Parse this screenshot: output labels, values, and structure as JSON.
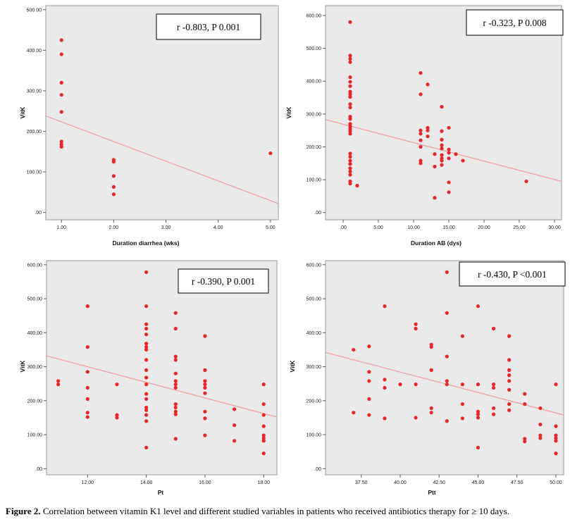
{
  "colors": {
    "marker": "#e8262a",
    "fitline": "#f0a0a0",
    "plotbg": "#eaeaea",
    "axis": "#000000"
  },
  "chart_data": [
    {
      "type": "scatter",
      "xlabel": "Duration diarrhea (wks)",
      "ylabel": "VitK",
      "annotation": "r -0.803, P 0.001",
      "xlim": [
        0.7,
        5.15
      ],
      "ylim": [
        -18,
        510
      ],
      "xticks": [
        1,
        2,
        3,
        4,
        5
      ],
      "xtick_labels": [
        "1.00",
        "2.00",
        "3.00",
        "4.00",
        "5.00"
      ],
      "yticks": [
        0,
        100,
        200,
        300,
        400,
        500
      ],
      "ytick_labels": [
        ".00",
        "100.00",
        "200.00",
        "300.00",
        "400.00",
        "500.00"
      ],
      "fit_line": [
        [
          0.7,
          238
        ],
        [
          5.15,
          22
        ]
      ],
      "points": [
        [
          1,
          425
        ],
        [
          1,
          390
        ],
        [
          1,
          320
        ],
        [
          1,
          290
        ],
        [
          1,
          248
        ],
        [
          1,
          175
        ],
        [
          1,
          168
        ],
        [
          1,
          162
        ],
        [
          2,
          130
        ],
        [
          2,
          125
        ],
        [
          2,
          90
        ],
        [
          2,
          63
        ],
        [
          2,
          45
        ],
        [
          5,
          146
        ]
      ]
    },
    {
      "type": "scatter",
      "xlabel": "Duration AB (dys)",
      "ylabel": "VitK",
      "annotation": "r -0.323, P 0.008",
      "xlim": [
        -2.5,
        31
      ],
      "ylim": [
        -22,
        630
      ],
      "xticks": [
        0,
        5,
        10,
        15,
        20,
        25,
        30
      ],
      "xtick_labels": [
        ".00",
        "5.00",
        "10.00",
        "15.00",
        "20.00",
        "25.00",
        "30.00"
      ],
      "yticks": [
        0,
        100,
        200,
        300,
        400,
        500,
        600
      ],
      "ytick_labels": [
        ".00",
        "100.00",
        "200.00",
        "300.00",
        "400.00",
        "500.00",
        "600.00"
      ],
      "fit_line": [
        [
          -2.5,
          283
        ],
        [
          31,
          95
        ]
      ],
      "points": [
        [
          1,
          580
        ],
        [
          1,
          478
        ],
        [
          1,
          468
        ],
        [
          1,
          458
        ],
        [
          1,
          412
        ],
        [
          1,
          398
        ],
        [
          1,
          385
        ],
        [
          1,
          368
        ],
        [
          1,
          360
        ],
        [
          1,
          352
        ],
        [
          1,
          330
        ],
        [
          1,
          320
        ],
        [
          1,
          292
        ],
        [
          1,
          285
        ],
        [
          1,
          270
        ],
        [
          1,
          262
        ],
        [
          1,
          255
        ],
        [
          1,
          248
        ],
        [
          1,
          240
        ],
        [
          1,
          180
        ],
        [
          1,
          170
        ],
        [
          1,
          158
        ],
        [
          1,
          148
        ],
        [
          1,
          135
        ],
        [
          1,
          125
        ],
        [
          1,
          115
        ],
        [
          1,
          95
        ],
        [
          1,
          88
        ],
        [
          2,
          82
        ],
        [
          11,
          425
        ],
        [
          11,
          360
        ],
        [
          11,
          250
        ],
        [
          11,
          240
        ],
        [
          11,
          220
        ],
        [
          11,
          200
        ],
        [
          11,
          158
        ],
        [
          11,
          150
        ],
        [
          12,
          390
        ],
        [
          12,
          258
        ],
        [
          12,
          250
        ],
        [
          12,
          232
        ],
        [
          13,
          178
        ],
        [
          13,
          140
        ],
        [
          13,
          45
        ],
        [
          14,
          322
        ],
        [
          14,
          248
        ],
        [
          14,
          222
        ],
        [
          14,
          205
        ],
        [
          14,
          195
        ],
        [
          14,
          175
        ],
        [
          14,
          165
        ],
        [
          14,
          158
        ],
        [
          14,
          145
        ],
        [
          15,
          258
        ],
        [
          15,
          192
        ],
        [
          15,
          182
        ],
        [
          15,
          165
        ],
        [
          15,
          92
        ],
        [
          15,
          62
        ],
        [
          16,
          178
        ],
        [
          17,
          158
        ],
        [
          26,
          95
        ]
      ]
    },
    {
      "type": "scatter",
      "xlabel": "Pt",
      "ylabel": "VitK",
      "annotation": "r -0.390, P 0.001",
      "xlim": [
        10.6,
        18.45
      ],
      "ylim": [
        -18,
        612
      ],
      "xticks": [
        12,
        14,
        16,
        18
      ],
      "xtick_labels": [
        "12.00",
        "14.00",
        "16.00",
        "18.00"
      ],
      "yticks": [
        0,
        100,
        200,
        300,
        400,
        500,
        600
      ],
      "ytick_labels": [
        ".00",
        "100.00",
        "200.00",
        "300.00",
        "400.00",
        "500.00",
        "600.00"
      ],
      "fit_line": [
        [
          10.6,
          332
        ],
        [
          18.45,
          152
        ]
      ],
      "points": [
        [
          11,
          258
        ],
        [
          11,
          248
        ],
        [
          12,
          478
        ],
        [
          12,
          358
        ],
        [
          12,
          285
        ],
        [
          12,
          238
        ],
        [
          12,
          205
        ],
        [
          12,
          165
        ],
        [
          12,
          152
        ],
        [
          13,
          248
        ],
        [
          13,
          158
        ],
        [
          13,
          150
        ],
        [
          14,
          578
        ],
        [
          14,
          478
        ],
        [
          14,
          425
        ],
        [
          14,
          412
        ],
        [
          14,
          395
        ],
        [
          14,
          368
        ],
        [
          14,
          358
        ],
        [
          14,
          350
        ],
        [
          14,
          320
        ],
        [
          14,
          290
        ],
        [
          14,
          268
        ],
        [
          14,
          248
        ],
        [
          14,
          220
        ],
        [
          14,
          205
        ],
        [
          14,
          180
        ],
        [
          14,
          172
        ],
        [
          14,
          158
        ],
        [
          14,
          140
        ],
        [
          14,
          62
        ],
        [
          15,
          458
        ],
        [
          15,
          412
        ],
        [
          15,
          330
        ],
        [
          15,
          320
        ],
        [
          15,
          280
        ],
        [
          15,
          258
        ],
        [
          15,
          248
        ],
        [
          15,
          238
        ],
        [
          15,
          190
        ],
        [
          15,
          180
        ],
        [
          15,
          168
        ],
        [
          15,
          160
        ],
        [
          15,
          88
        ],
        [
          16,
          390
        ],
        [
          16,
          290
        ],
        [
          16,
          258
        ],
        [
          16,
          248
        ],
        [
          16,
          238
        ],
        [
          16,
          222
        ],
        [
          16,
          168
        ],
        [
          16,
          148
        ],
        [
          16,
          98
        ],
        [
          17,
          175
        ],
        [
          17,
          128
        ],
        [
          17,
          82
        ],
        [
          18,
          248
        ],
        [
          18,
          190
        ],
        [
          18,
          158
        ],
        [
          18,
          125
        ],
        [
          18,
          98
        ],
        [
          18,
          90
        ],
        [
          18,
          82
        ],
        [
          18,
          45
        ]
      ]
    },
    {
      "type": "scatter",
      "xlabel": "Ptt",
      "ylabel": "VitK",
      "annotation": "r -0.430, P <0.001",
      "xlim": [
        35.2,
        50.5
      ],
      "ylim": [
        -18,
        612
      ],
      "xticks": [
        37.5,
        40,
        42.5,
        45,
        47.5,
        50
      ],
      "xtick_labels": [
        "37.50",
        "40.00",
        "42.50",
        "45.00",
        "47.50",
        "50.00"
      ],
      "yticks": [
        0,
        100,
        200,
        300,
        400,
        500,
        600
      ],
      "ytick_labels": [
        ".00",
        "100.00",
        "200.00",
        "300.00",
        "400.00",
        "500.00",
        "600.00"
      ],
      "fit_line": [
        [
          35.2,
          342
        ],
        [
          50.5,
          158
        ]
      ],
      "points": [
        [
          37,
          350
        ],
        [
          37,
          165
        ],
        [
          38,
          360
        ],
        [
          38,
          285
        ],
        [
          38,
          258
        ],
        [
          38,
          205
        ],
        [
          38,
          158
        ],
        [
          39,
          478
        ],
        [
          39,
          262
        ],
        [
          39,
          238
        ],
        [
          39,
          148
        ],
        [
          40,
          248
        ],
        [
          41,
          425
        ],
        [
          41,
          412
        ],
        [
          41,
          248
        ],
        [
          41,
          150
        ],
        [
          42,
          365
        ],
        [
          42,
          358
        ],
        [
          42,
          290
        ],
        [
          42,
          178
        ],
        [
          42,
          165
        ],
        [
          43,
          578
        ],
        [
          43,
          458
        ],
        [
          43,
          330
        ],
        [
          43,
          258
        ],
        [
          43,
          248
        ],
        [
          43,
          140
        ],
        [
          44,
          390
        ],
        [
          44,
          248
        ],
        [
          44,
          190
        ],
        [
          44,
          148
        ],
        [
          45,
          478
        ],
        [
          45,
          248
        ],
        [
          45,
          168
        ],
        [
          45,
          160
        ],
        [
          45,
          150
        ],
        [
          45,
          62
        ],
        [
          46,
          412
        ],
        [
          46,
          248
        ],
        [
          46,
          238
        ],
        [
          46,
          178
        ],
        [
          46,
          160
        ],
        [
          47,
          390
        ],
        [
          47,
          320
        ],
        [
          47,
          290
        ],
        [
          47,
          275
        ],
        [
          47,
          258
        ],
        [
          47,
          232
        ],
        [
          47,
          190
        ],
        [
          47,
          172
        ],
        [
          48,
          220
        ],
        [
          48,
          190
        ],
        [
          48,
          88
        ],
        [
          48,
          80
        ],
        [
          49,
          178
        ],
        [
          49,
          130
        ],
        [
          49,
          98
        ],
        [
          49,
          90
        ],
        [
          50,
          248
        ],
        [
          50,
          125
        ],
        [
          50,
          98
        ],
        [
          50,
          90
        ],
        [
          50,
          82
        ],
        [
          50,
          45
        ]
      ]
    }
  ],
  "caption": {
    "lead": "Figure 2.",
    "text": " Correlation between vitamin K1 level and different studied variables in patients who received antibiotics therapy for ≥ 10 days."
  }
}
